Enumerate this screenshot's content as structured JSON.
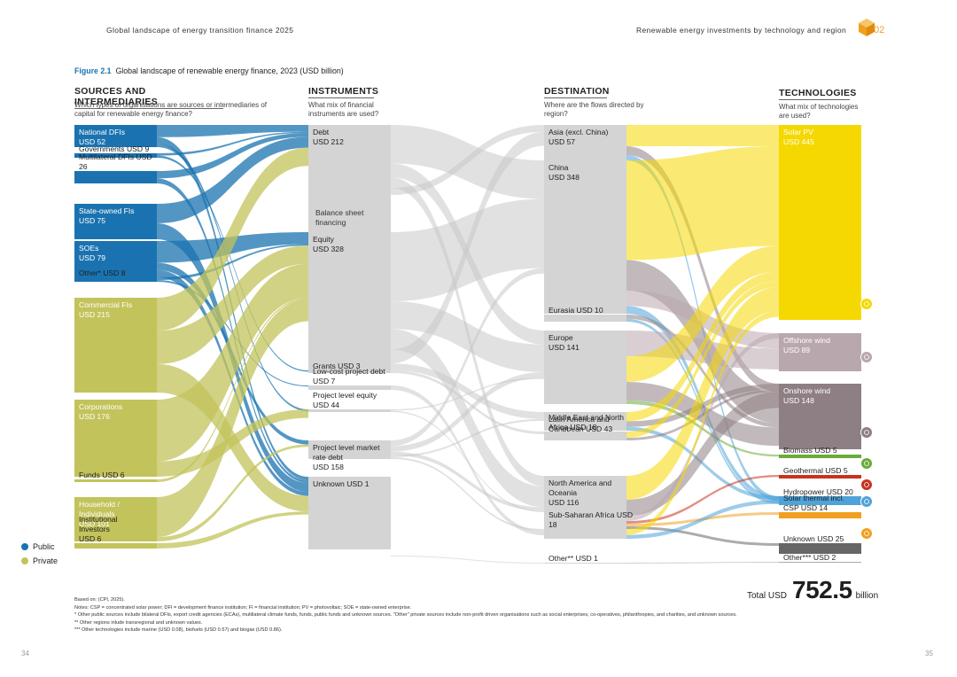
{
  "header": {
    "left": "Global landscape of energy transition finance 2025",
    "right": "Renewable energy investments by technology and region",
    "chapter": "02"
  },
  "figure": {
    "number": "Figure 2.1",
    "title": "Global landscape of renewable energy finance, 2023 (USD billion)"
  },
  "columns": {
    "sources": {
      "title": "SOURCES AND INTERMEDIARIES",
      "subtitle": "Which types of organisations are sources or intermediaries of capital for renewable energy finance?"
    },
    "instruments": {
      "title": "INSTRUMENTS",
      "subtitle": "What mix of financial instruments are used?"
    },
    "destination": {
      "title": "DESTINATION",
      "subtitle": "Where are the flows directed by region?"
    },
    "technologies": {
      "title": "TECHNOLOGIES",
      "subtitle": "What mix of technologies are used?"
    }
  },
  "legend": {
    "public": "Public",
    "private": "Private",
    "public_color": "#1a73b0",
    "private_color": "#c2c35a"
  },
  "total": {
    "prefix": "Total USD",
    "value": "752.5",
    "suffix": "billion"
  },
  "notes": [
    "Based on: (CPI, 2025).",
    "Notes: CSP = concentrated solar power; DFI = development finance institution; FI = financial institution; PV = photovoltaic; SOE = state-owned enterprise.",
    "*     Other public sources include bilateral DFIs, export credit agencies (ECAs), multilateral climate funds, funds, public funds and unknown sources. \"Other\" private sources include non-profit driven organisations such as social enterprises, co-operatives, philanthropies, and charities, and unknown sources.",
    "**   Other regions inlude transregional and unknown values.",
    "*** Other technologies include marine (USD 0.08), biofuels (USD 0.57) and biogas (USD 0.86)."
  ],
  "pages": {
    "left": "34",
    "right": "35"
  },
  "chart_data": {
    "type": "sankey",
    "title": "Global landscape of renewable energy finance, 2023 (USD billion)",
    "unit": "USD billion",
    "total": 752.5,
    "sources": [
      {
        "name": "National DFIs",
        "label": "National DFIs",
        "value_label": "USD 52",
        "value": 52,
        "sector": "public"
      },
      {
        "name": "Governments",
        "label": "Governments USD 9",
        "value_label": "",
        "value": 9,
        "sector": "public"
      },
      {
        "name": "Multilateral DFIs",
        "label": "Multilateral DFIs USD 26",
        "value_label": "",
        "value": 26,
        "sector": "public"
      },
      {
        "name": "State-owned FIs",
        "label": "State-owned FIs",
        "value_label": "USD 75",
        "value": 75,
        "sector": "public"
      },
      {
        "name": "SOEs",
        "label": "SOEs",
        "value_label": "USD 79",
        "value": 79,
        "sector": "public"
      },
      {
        "name": "Other*",
        "label": "Other* USD 8",
        "value_label": "",
        "value": 8,
        "sector": "public"
      },
      {
        "name": "Commercial FIs",
        "label": "Commercial FIs",
        "value_label": "USD 215",
        "value": 215,
        "sector": "private"
      },
      {
        "name": "Corporations",
        "label": "Corporations",
        "value_label": "USD 176",
        "value": 176,
        "sector": "private"
      },
      {
        "name": "Funds",
        "label": "Funds USD 6",
        "value_label": "",
        "value": 6,
        "sector": "private"
      },
      {
        "name": "Household / Individuals",
        "label": "Household / Individuals",
        "value_label": "USD 101",
        "value": 101,
        "sector": "private"
      },
      {
        "name": "Institutional Investors",
        "label": "Institutional Investors",
        "value_label": "USD 6",
        "value": 6,
        "sector": "private"
      }
    ],
    "instruments": [
      {
        "name": "Debt",
        "label": "Debt",
        "value_label": "USD 212",
        "value": 212
      },
      {
        "name": "Balance sheet financing",
        "label": "Balance sheet financing",
        "value_label": ""
      },
      {
        "name": "Equity",
        "label": "Equity",
        "value_label": "USD 328",
        "value": 328
      },
      {
        "name": "Grants",
        "label": "Grants USD 3",
        "value_label": "",
        "value": 3
      },
      {
        "name": "Low-cost project debt",
        "label": "Low-cost project debt USD 7",
        "value_label": "",
        "value": 7
      },
      {
        "name": "Project level equity",
        "label": "Project level equity USD 44",
        "value_label": "",
        "value": 44
      },
      {
        "name": "Project level market rate debt",
        "label": "Project level market rate debt",
        "value_label": "USD 158",
        "value": 158
      },
      {
        "name": "Unknown",
        "label": "Unknown USD 1",
        "value_label": "",
        "value": 1
      }
    ],
    "destinations": [
      {
        "name": "Asia (excl. China)",
        "label": "Asia (excl. China)",
        "value_label": "USD 57",
        "value": 57
      },
      {
        "name": "China",
        "label": "China",
        "value_label": "USD 348",
        "value": 348
      },
      {
        "name": "Eurasia",
        "label": "Eurasia USD 10",
        "value_label": "",
        "value": 10
      },
      {
        "name": "Europe",
        "label": "Europe",
        "value_label": "USD 141",
        "value": 141
      },
      {
        "name": "Latin America and Caribbean",
        "label": "Latin America and Caribbean USD 43",
        "value_label": "",
        "value": 43
      },
      {
        "name": "Middle East and North Africa",
        "label": "Middle East and North Africa USD 18",
        "value_label": "",
        "value": 18
      },
      {
        "name": "North America and Oceania",
        "label": "North America and Oceania",
        "value_label": "USD 116",
        "value": 116
      },
      {
        "name": "Sub-Saharan Africa",
        "label": "Sub-Saharan Africa USD 18",
        "value_label": "",
        "value": 18
      },
      {
        "name": "Other**",
        "label": "Other** USD 1",
        "value_label": "",
        "value": 1
      }
    ],
    "technologies": [
      {
        "name": "Solar PV",
        "label": "Solar PV",
        "value_label": "USD 445",
        "value": 445,
        "color": "#f5d800"
      },
      {
        "name": "Offshore wind",
        "label": "Offshore wind",
        "value_label": "USD 89",
        "value": 89,
        "color": "#b9a7ae"
      },
      {
        "name": "Onshore wind",
        "label": "Onshore wind",
        "value_label": "USD 148",
        "value": 148,
        "color": "#8e7f84"
      },
      {
        "name": "Biomass",
        "label": "Biomass USD 5",
        "value_label": "",
        "value": 5,
        "color": "#6aab3a"
      },
      {
        "name": "Geothermal",
        "label": "Geothermal USD 5",
        "value_label": "",
        "value": 5,
        "color": "#c8321e"
      },
      {
        "name": "Hydropower",
        "label": "Hydropower USD 20",
        "value_label": "",
        "value": 20,
        "color": "#4fa3d8"
      },
      {
        "name": "Solar thermal incl. CSP",
        "label": "Solar thermal incl. CSP USD 14",
        "value_label": "",
        "value": 14,
        "color": "#f0a020"
      },
      {
        "name": "Unknown",
        "label": "Unknown USD 25",
        "value_label": "",
        "value": 25,
        "color": "#666666"
      },
      {
        "name": "Other***",
        "label": "Other*** USD 2",
        "value_label": "",
        "value": 2,
        "color": "#aaaaaa"
      }
    ]
  }
}
